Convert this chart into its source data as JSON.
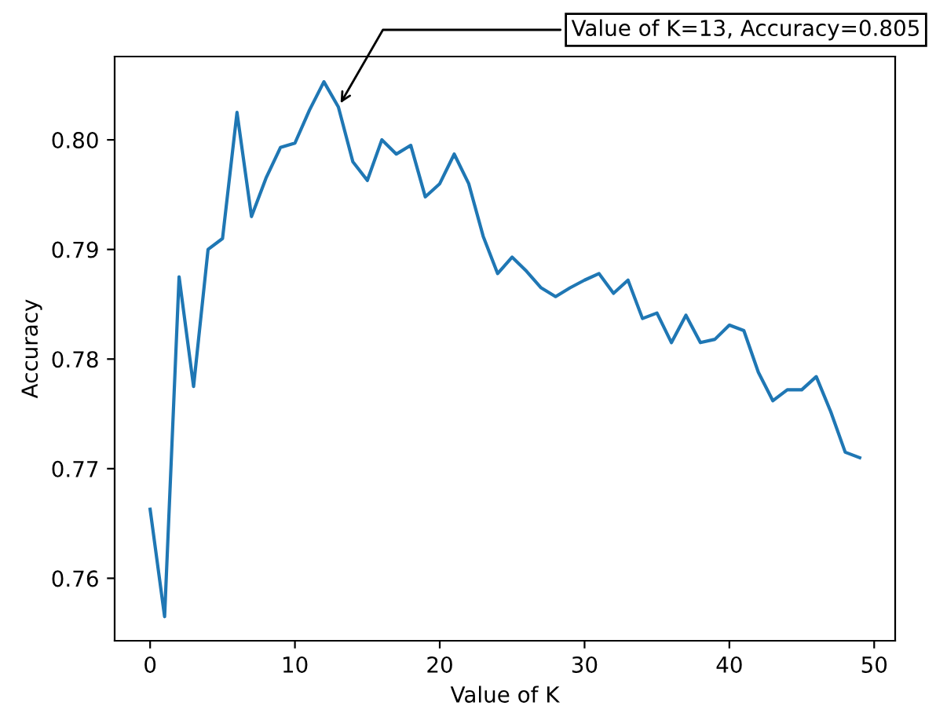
{
  "chart_data": {
    "type": "line",
    "xlabel": "Value of K",
    "ylabel": "Accuracy",
    "x": [
      0,
      1,
      2,
      3,
      4,
      5,
      6,
      7,
      8,
      9,
      10,
      11,
      12,
      13,
      14,
      15,
      16,
      17,
      18,
      19,
      20,
      21,
      22,
      23,
      24,
      25,
      26,
      27,
      28,
      29,
      30,
      31,
      32,
      33,
      34,
      35,
      36,
      37,
      38,
      39,
      40,
      41,
      42,
      43,
      44,
      45,
      46,
      47,
      48,
      49
    ],
    "series": [
      {
        "color": "#1f77b4",
        "values": [
          0.7663,
          0.7565,
          0.7875,
          0.7775,
          0.79,
          0.791,
          0.8025,
          0.793,
          0.7965,
          0.7993,
          0.7997,
          0.8027,
          0.8053,
          0.803,
          0.798,
          0.7963,
          0.8,
          0.7987,
          0.7995,
          0.7948,
          0.796,
          0.7987,
          0.796,
          0.7912,
          0.7878,
          0.7893,
          0.788,
          0.7865,
          0.7857,
          0.7865,
          0.7872,
          0.7878,
          0.786,
          0.7872,
          0.7837,
          0.7842,
          0.7815,
          0.784,
          0.7815,
          0.7818,
          0.7831,
          0.7826,
          0.7788,
          0.7762,
          0.7772,
          0.7772,
          0.7784,
          0.7752,
          0.7715,
          0.771
        ]
      }
    ],
    "xlim": [
      -2.45,
      51.45
    ],
    "xticks": [
      0,
      10,
      20,
      30,
      40,
      50
    ],
    "ylim": [
      0.7543,
      0.8076
    ],
    "yticks": [
      {
        "value": 0.76,
        "label": "0.76"
      },
      {
        "value": 0.77,
        "label": "0.77"
      },
      {
        "value": 0.78,
        "label": "0.78"
      },
      {
        "value": 0.79,
        "label": "0.79"
      },
      {
        "value": 0.8,
        "label": "0.80"
      }
    ],
    "annotations": [
      {
        "text": "Value of K=13, Accuracy=0.805",
        "x": 13,
        "y": 0.803
      }
    ],
    "grid": false,
    "legend": false
  }
}
